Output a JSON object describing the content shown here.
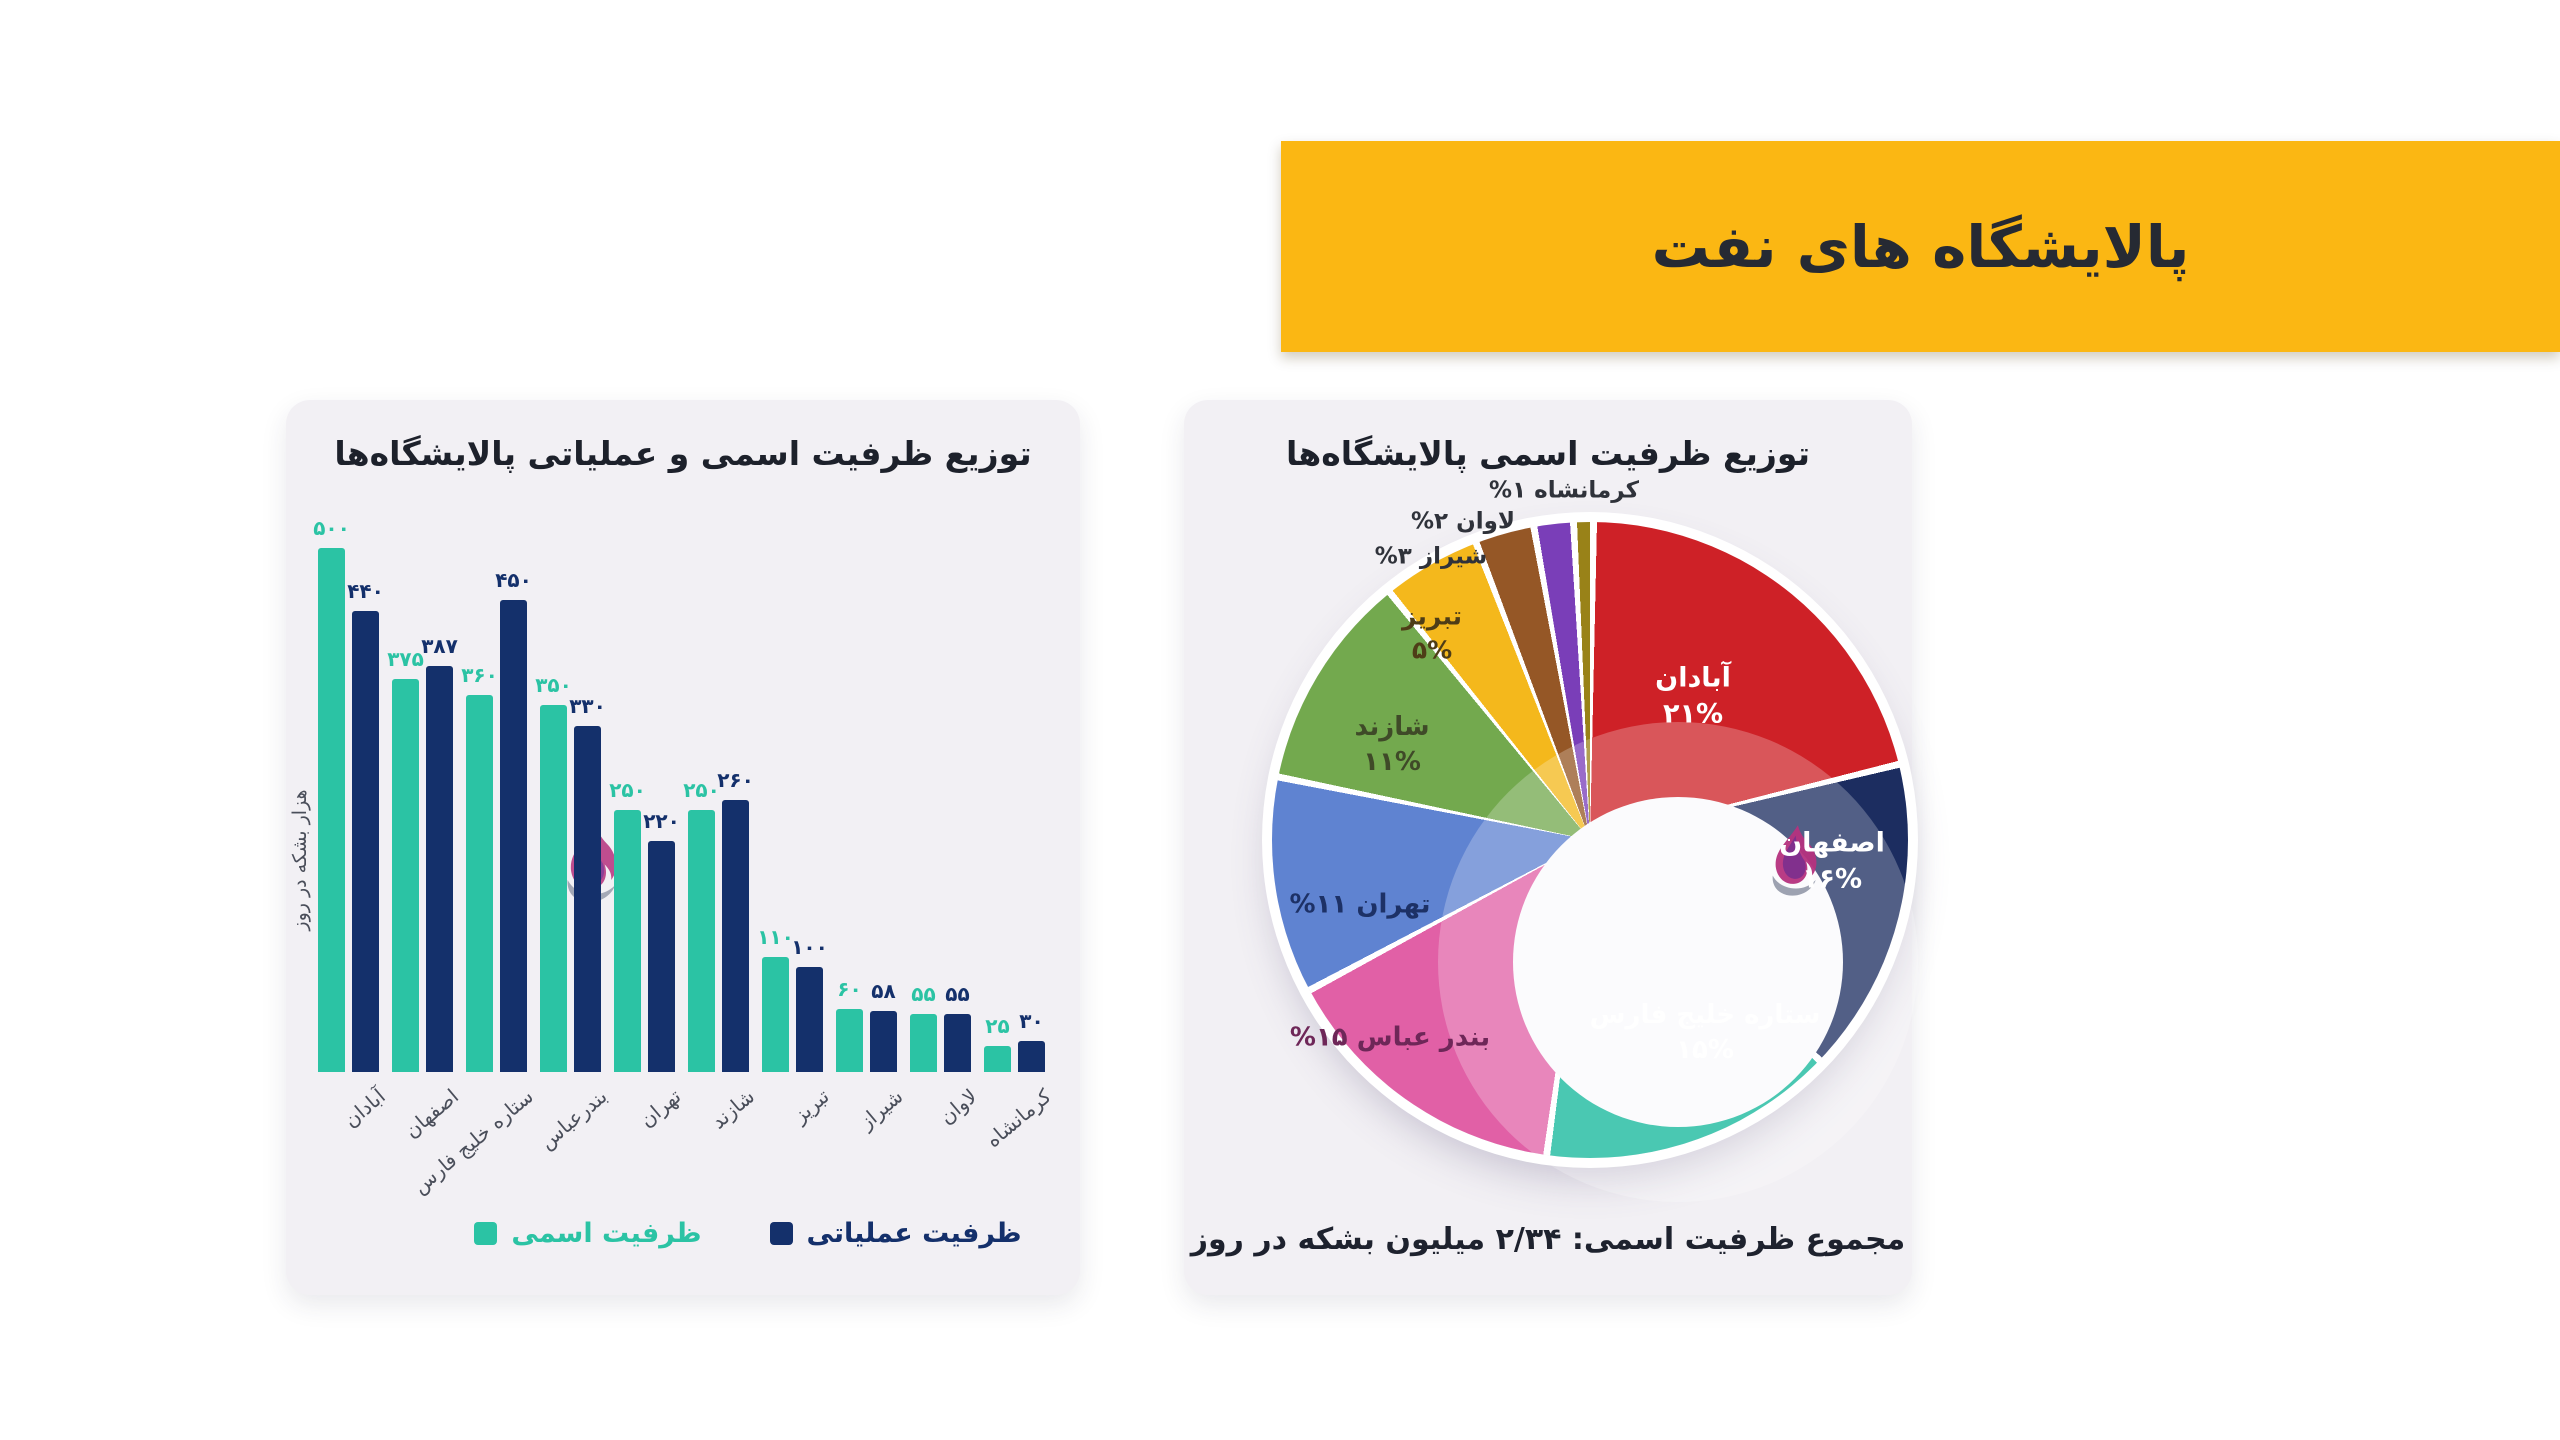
{
  "banner": {
    "title": "پالایشگاه های نفت",
    "background": "#FBB713",
    "text_color": "#262A33"
  },
  "logo": {
    "name": "brand-flame-logo",
    "flame_color_top": "#7B2F8E",
    "flame_color_bottom": "#B5317E",
    "swoosh_color": "#8C92A3"
  },
  "chart_data": [
    {
      "type": "bar",
      "title": "توزیع ظرفیت اسمی و عملیاتی پالایشگاه‌ها",
      "xlabel": "",
      "ylabel": "هزار بشکه در روز",
      "ylim": [
        0,
        550
      ],
      "grid": false,
      "legend_position": "bottom",
      "number_style": "persian-digits",
      "categories": [
        "آبادان",
        "اصفهان",
        "ستاره خلیج فارس",
        "بندرعباس",
        "تهران",
        "شازند",
        "تبریز",
        "شیراز",
        "لاوان",
        "کرمانشاه"
      ],
      "series": [
        {
          "name": "ظرفیت اسمی",
          "color": "#2BC3A4",
          "values": [
            500,
            375,
            360,
            350,
            250,
            250,
            110,
            60,
            55,
            25
          ]
        },
        {
          "name": "ظرفیت عملیاتی",
          "color": "#14306B",
          "values": [
            440,
            387,
            450,
            330,
            220,
            260,
            100,
            58,
            55,
            30
          ]
        }
      ]
    },
    {
      "type": "pie",
      "subtype": "donut",
      "title": "توزیع ظرفیت اسمی پالایشگاه‌ها",
      "caption": "مجموع ظرفیت اسمی: ۲/۳۴ میلیون بشکه در روز",
      "unit": "%",
      "start_angle_deg": 0,
      "direction": "clockwise",
      "slices": [
        {
          "label": "آبادان",
          "value": 21,
          "color": "#CE2127",
          "label_color": "#FFFFFF"
        },
        {
          "label": "اصفهان",
          "value": 16,
          "color": "#1C2D60",
          "label_color": "#FFFFFF"
        },
        {
          "label": "ستاره خلیج فارس",
          "value": 15,
          "color": "#12B79A",
          "label_color": "#FFFFFF"
        },
        {
          "label": "بندر عباس",
          "value": 15,
          "color": "#E160A6",
          "label_color": "#6E2758"
        },
        {
          "label": "تهران",
          "value": 11,
          "color": "#5F83D1",
          "label_color": "#1D3166"
        },
        {
          "label": "شازند",
          "value": 11,
          "color": "#73A94E",
          "label_color": "#3F4A28"
        },
        {
          "label": "تبریز",
          "value": 5,
          "color": "#F4B81C",
          "label_color": "#4E3D17"
        },
        {
          "label": "شیراز",
          "value": 3,
          "color": "#955726",
          "label_color": "#2F323A"
        },
        {
          "label": "لاوان",
          "value": 2,
          "color": "#7A3EB8",
          "label_color": "#2F323A"
        },
        {
          "label": "کرمانشاه",
          "value": 1,
          "color": "#998218",
          "label_color": "#2F323A"
        }
      ]
    }
  ]
}
